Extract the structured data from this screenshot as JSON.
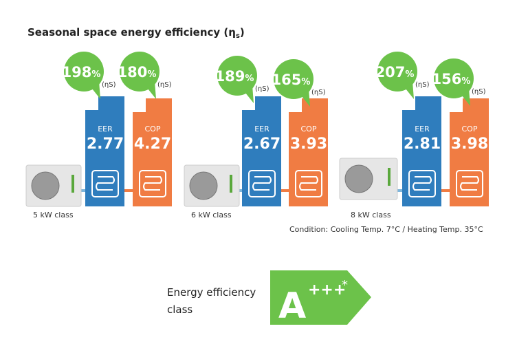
{
  "header": {
    "title_prefix": "Seasonal space energy efficiency (η",
    "title_subscript": "s",
    "title_suffix": ")"
  },
  "units": [
    {
      "seer": "198",
      "seer_unit": "%",
      "seer_label": "(ηS)",
      "scop": "180",
      "scop_unit": "%",
      "scop_label": "(ηS)",
      "eer_label": "EER",
      "eer": "2.77",
      "cop_label": "COP",
      "cop": "4.27",
      "class": "5 kW class"
    },
    {
      "seer": "189",
      "seer_unit": "%",
      "seer_label": "(ηS)",
      "scop": "165",
      "scop_unit": "%",
      "scop_label": "(ηS)",
      "eer_label": "EER",
      "eer": "2.67",
      "cop_label": "COP",
      "cop": "3.93",
      "class": "6 kW class"
    },
    {
      "seer": "207",
      "seer_unit": "%",
      "seer_label": "(ηS)",
      "scop": "156",
      "scop_unit": "%",
      "scop_label": "(ηS)",
      "eer_label": "EER",
      "eer": "2.81",
      "cop_label": "COP",
      "cop": "3.98",
      "class": "8 kW class"
    }
  ],
  "condition": "Condition: Cooling Temp. 7°C / Heating Temp. 35°C",
  "energy_class": {
    "label_line1": "Energy efficiency",
    "label_line2": "class",
    "grade": "A",
    "plus": "+++",
    "note": "*"
  }
}
